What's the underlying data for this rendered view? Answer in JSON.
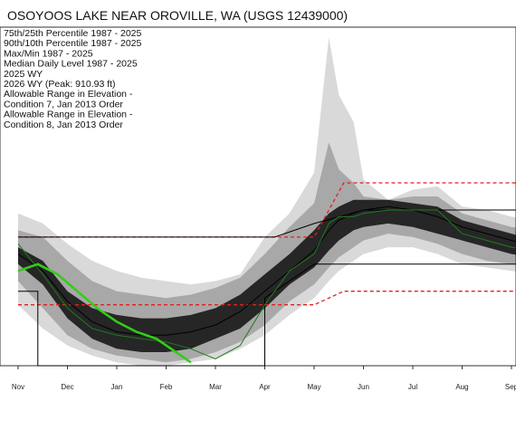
{
  "chart_data": {
    "type": "area",
    "title": "OSOYOOS LAKE NEAR OROVILLE, WA (USGS 12439000)",
    "xlabel": "",
    "ylabel": "",
    "categories": [
      "Nov",
      "Dec",
      "Jan",
      "Feb",
      "Mar",
      "Apr",
      "May",
      "Jun",
      "Jul",
      "Aug",
      "Sep"
    ],
    "legend": [
      "75th/25th Percentile 1987 - 2025",
      "90th/10th Percentile 1987 - 2025",
      "Max/Min 1987 - 2025",
      "Median Daily Level 1987 - 2025",
      "2025 WY",
      "2026 WY (Peak: 910.93 ft)",
      "Allowable Range in Elevation -",
      "Condition 7, Jan 2013 Order",
      "Allowable Range in Elevation -",
      "Condition 8, Jan 2013 Order"
    ],
    "legend_placement": "top-left",
    "grid": false,
    "colors": {
      "max_min": "#d9d9d9",
      "p90_10": "#a8a8a8",
      "p75_25": "#262626",
      "median": "#000000",
      "wy2025": "#1f7a1f",
      "wy2026": "#33cc1a",
      "condition7": "#e02020",
      "condition8": "#000000"
    },
    "note": "Values in relative elevation units (0 = bottom of visible range, 100 = top).",
    "x": [
      0,
      1,
      2,
      3,
      4,
      5,
      6,
      7,
      8,
      9,
      10,
      11
    ],
    "series": [
      {
        "name": "Max",
        "x": [
          0,
          0.5,
          1,
          1.5,
          2,
          2.5,
          3,
          3.5,
          4,
          4.5,
          5,
          5.5,
          6,
          6.3,
          6.5,
          6.8,
          7,
          7.5,
          8,
          8.5,
          9,
          9.5,
          10,
          10.5,
          11
        ],
        "values": [
          45,
          42,
          36,
          31,
          28,
          26,
          25,
          24,
          25,
          27,
          38,
          45,
          57,
          97,
          80,
          72,
          55,
          49,
          52,
          53,
          47,
          46,
          44,
          43,
          43
        ]
      },
      {
        "name": "90th Percentile",
        "x": [
          0,
          0.5,
          1,
          1.5,
          2,
          2.5,
          3,
          3.5,
          4,
          4.5,
          5,
          5.5,
          6,
          6.3,
          6.5,
          6.8,
          7,
          7.5,
          8,
          8.5,
          9,
          9.5,
          10,
          10.5,
          11
        ],
        "values": [
          40,
          38,
          31,
          25,
          22,
          21,
          20,
          21,
          23,
          26,
          33,
          41,
          48,
          66,
          58,
          54,
          50,
          49,
          50,
          50,
          45,
          43,
          41,
          40,
          40
        ]
      },
      {
        "name": "75th Percentile",
        "x": [
          0,
          0.5,
          1,
          1.5,
          2,
          2.5,
          3,
          3.5,
          4,
          4.5,
          5,
          5.5,
          6,
          6.3,
          6.5,
          6.8,
          7,
          7.5,
          8,
          8.5,
          9,
          9.5,
          10,
          10.5,
          11
        ],
        "values": [
          35,
          31,
          22,
          17,
          15,
          14,
          14,
          15,
          17,
          21,
          27,
          33,
          40,
          45,
          47,
          49,
          49,
          49,
          48,
          47,
          43,
          41,
          39,
          37,
          36
        ]
      },
      {
        "name": "Median",
        "x": [
          0,
          0.5,
          1,
          1.5,
          2,
          2.5,
          3,
          3.5,
          4,
          4.5,
          5,
          5.5,
          6,
          6.3,
          6.5,
          6.8,
          7,
          7.5,
          8,
          8.5,
          9,
          9.5,
          10,
          10.5,
          11
        ],
        "values": [
          33,
          28,
          19,
          13,
          10,
          9,
          9,
          10,
          12,
          16,
          22,
          28,
          34,
          40,
          43,
          45,
          46,
          47,
          46,
          44,
          41,
          39,
          37,
          35,
          34
        ]
      },
      {
        "name": "25th Percentile",
        "x": [
          0,
          0.5,
          1,
          1.5,
          2,
          2.5,
          3,
          3.5,
          4,
          4.5,
          5,
          5.5,
          6,
          6.3,
          6.5,
          6.8,
          7,
          7.5,
          8,
          8.5,
          9,
          9.5,
          10,
          10.5,
          11
        ],
        "values": [
          30,
          24,
          14,
          8,
          5,
          4,
          4,
          5,
          8,
          11,
          17,
          24,
          29,
          34,
          37,
          40,
          41,
          42,
          41,
          39,
          37,
          35,
          33,
          32,
          31
        ]
      },
      {
        "name": "10th Percentile",
        "x": [
          0,
          0.5,
          1,
          1.5,
          2,
          2.5,
          3,
          3.5,
          4,
          4.5,
          5,
          5.5,
          6,
          6.3,
          6.5,
          6.8,
          7,
          7.5,
          8,
          8.5,
          9,
          9.5,
          10,
          10.5,
          11
        ],
        "values": [
          25,
          17,
          9,
          5,
          3,
          2,
          1,
          2,
          4,
          7,
          12,
          19,
          24,
          29,
          32,
          35,
          37,
          39,
          38,
          36,
          33,
          31,
          30,
          29,
          28
        ]
      },
      {
        "name": "Min",
        "x": [
          0,
          0.5,
          1,
          1.5,
          2,
          2.5,
          3,
          3.5,
          4,
          4.5,
          5,
          5.5,
          6,
          6.3,
          6.5,
          6.8,
          7,
          7.5,
          8,
          8.5,
          9,
          9.5,
          10,
          10.5,
          11
        ],
        "values": [
          18,
          11,
          6,
          3,
          1,
          0,
          0,
          1,
          2,
          5,
          9,
          15,
          20,
          25,
          28,
          31,
          33,
          35,
          35,
          33,
          30,
          29,
          28,
          27,
          26
        ]
      },
      {
        "name": "2025 WY",
        "x": [
          0,
          0.5,
          1,
          1.5,
          2,
          2.5,
          3,
          3.5,
          4,
          4.5,
          5,
          5.5,
          6,
          6.3,
          6.5,
          6.8,
          7,
          7.5,
          8,
          8.5,
          9,
          9.5,
          10,
          10.5,
          11
        ],
        "values": [
          36,
          27,
          17,
          11,
          9,
          8,
          7,
          5,
          2,
          6,
          18,
          28,
          33,
          42,
          44,
          44,
          45,
          46,
          46,
          46,
          39,
          37,
          35,
          34,
          33
        ]
      },
      {
        "name": "2026 WY (Peak: 910.93 ft)",
        "x": [
          0,
          0.4,
          0.8,
          1.2,
          1.6,
          2.0,
          2.4,
          2.8,
          3.2,
          3.5
        ],
        "values": [
          28,
          30,
          27,
          22,
          17,
          13,
          10,
          8,
          4,
          1
        ]
      },
      {
        "name": "Allowable Range in Elevation - Condition 7, Jan 2013 Order (upper)",
        "x": [
          0,
          1,
          2,
          3,
          4,
          5,
          6,
          6.6,
          11
        ],
        "values": [
          38,
          38,
          38,
          38,
          38,
          38,
          38,
          54,
          54
        ]
      },
      {
        "name": "Allowable Range in Elevation - Condition 7, Jan 2013 Order (lower)",
        "x": [
          0,
          1,
          2,
          3,
          4,
          5,
          6,
          6.6,
          11
        ],
        "values": [
          18,
          18,
          18,
          18,
          18,
          18,
          18,
          22,
          22
        ]
      },
      {
        "name": "Allowable Range in Elevation - Condition 8, Jan 2013 Order (upper)",
        "x": [
          0,
          1,
          2,
          3,
          4,
          5,
          5.2,
          6,
          7,
          8,
          9,
          10,
          11
        ],
        "values": [
          38,
          38,
          38,
          38,
          38,
          38,
          38,
          42,
          46,
          46,
          46,
          46,
          46
        ]
      },
      {
        "name": "Allowable Range in Elevation - Condition 8, Jan 2013 Order (lower)",
        "x": [
          0,
          0.4,
          0.4,
          1,
          2,
          3,
          4,
          5,
          5.0,
          6,
          7,
          8,
          9,
          10,
          11
        ],
        "values": [
          22,
          22,
          0,
          0,
          0,
          0,
          0,
          0,
          20,
          30,
          30,
          30,
          30,
          30,
          30
        ]
      }
    ]
  }
}
